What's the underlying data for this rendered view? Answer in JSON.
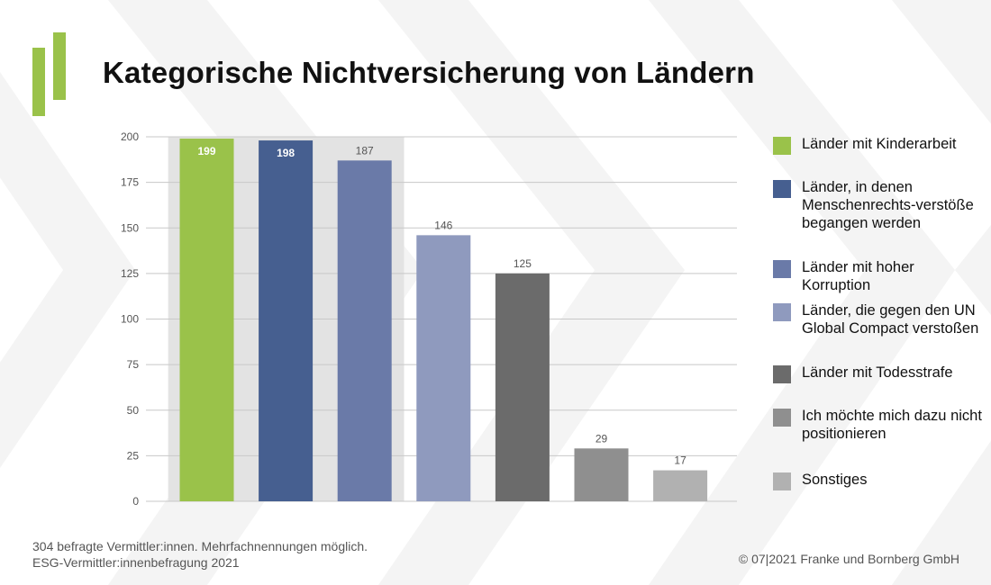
{
  "title": "Kategorische Nichtversicherung von Ländern",
  "colors": {
    "brand_green": "#9ac24a",
    "highlight_bg": "#e3e3e3",
    "gridline": "#c8c8c8"
  },
  "chart_data": {
    "type": "bar",
    "title": "Kategorische Nichtversicherung von Ländern",
    "xlabel": "",
    "ylabel": "",
    "ylim": [
      0,
      200
    ],
    "yticks": [
      0,
      25,
      50,
      75,
      100,
      125,
      150,
      175,
      200
    ],
    "grid": true,
    "legend_position": "right",
    "highlighted_categories": 3,
    "categories": [
      "Länder mit Kinderarbeit",
      "Länder, in denen Menschenrechts-verstöße begangen werden",
      "Länder mit hoher Korruption",
      "Länder, die gegen den UN Global Compact verstoßen",
      "Länder mit Todesstrafe",
      "Ich möchte mich dazu nicht positionieren",
      "Sonstiges"
    ],
    "values": [
      199,
      198,
      187,
      146,
      125,
      29,
      17
    ],
    "colors": [
      "#9ac24a",
      "#465f90",
      "#6a7aa8",
      "#8f9abe",
      "#6b6b6b",
      "#8f8f8f",
      "#b1b1b1"
    ],
    "label_inside": [
      true,
      true,
      false,
      false,
      false,
      false,
      false
    ]
  },
  "legend": [
    {
      "label": "Länder mit Kinderarbeit",
      "color": "#9ac24a"
    },
    {
      "label": "Länder, in denen Menschenrechts-verstöße begangen werden",
      "color": "#465f90"
    },
    {
      "label": "Länder mit hoher Korruption",
      "color": "#6a7aa8"
    },
    {
      "label": "Länder, die gegen den UN Global Compact verstoßen",
      "color": "#8f9abe"
    },
    {
      "label": "Länder mit Todesstrafe",
      "color": "#6b6b6b"
    },
    {
      "label": "Ich möchte mich dazu nicht positionieren",
      "color": "#8f8f8f"
    },
    {
      "label": "Sonstiges",
      "color": "#b1b1b1"
    }
  ],
  "footnote": {
    "line1": "304 befragte Vermittler:innen. Mehrfachnennungen möglich.",
    "line2": "ESG-Vermittler:innenbefragung 2021"
  },
  "copyright": "© 07|2021 Franke und Bornberg GmbH"
}
